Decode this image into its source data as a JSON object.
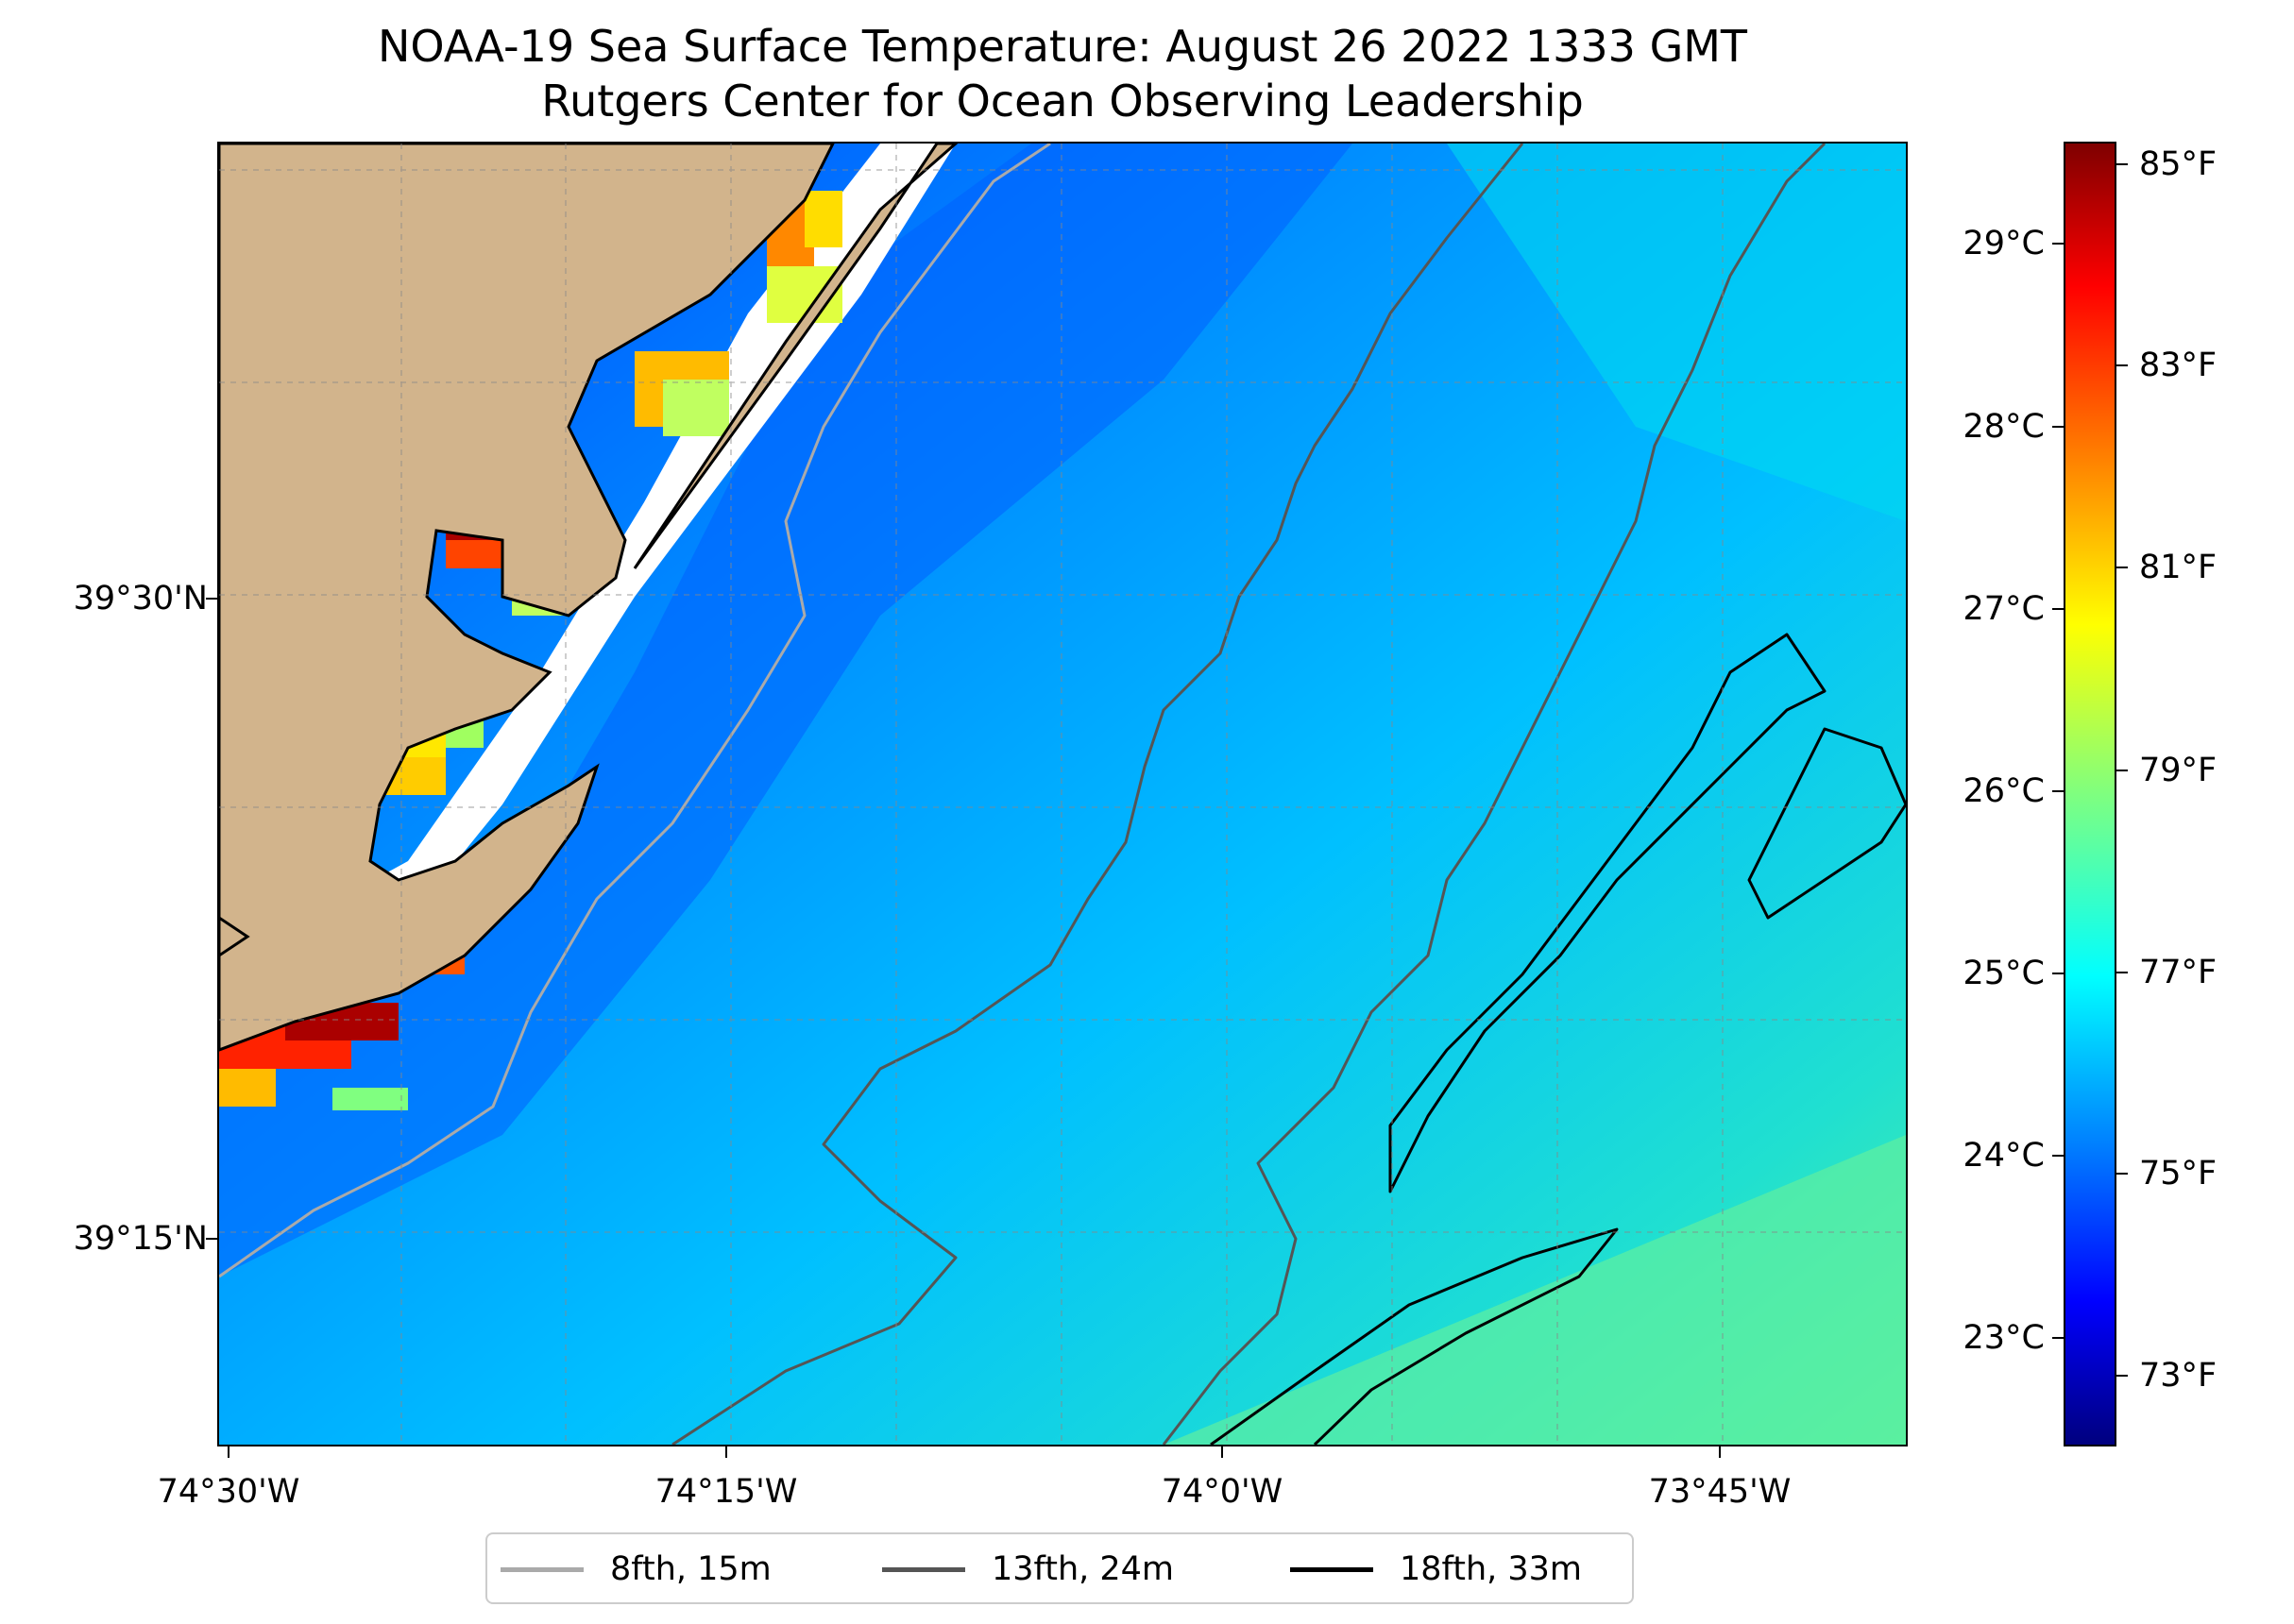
{
  "title": {
    "line1": "NOAA-19 Sea Surface Temperature: August 26 2022 1333 GMT",
    "line2": "Rutgers Center for Ocean Observing Leadership"
  },
  "axes": {
    "x_ticks": [
      "74°30'W",
      "74°15'W",
      "74°0'W",
      "73°45'W"
    ],
    "y_ticks": [
      "39°30'N",
      "39°15'N"
    ]
  },
  "colorbar": {
    "celsius_labels": [
      "29°C",
      "28°C",
      "27°C",
      "26°C",
      "25°C",
      "24°C",
      "23°C"
    ],
    "fahrenheit_labels": [
      "85°F",
      "83°F",
      "81°F",
      "79°F",
      "77°F",
      "75°F",
      "73°F"
    ],
    "celsius_range": [
      22.5,
      29.6
    ]
  },
  "legend": {
    "items": [
      {
        "label": "8fth, 15m",
        "color": "#aaaaaa"
      },
      {
        "label": "13fth, 24m",
        "color": "#555555"
      },
      {
        "label": "18fth, 33m",
        "color": "#000000"
      }
    ]
  },
  "colors": {
    "land": "#d2b48c",
    "ocean_dominant": "#00b4ff",
    "nearshore_warm": "#ff3300"
  }
}
